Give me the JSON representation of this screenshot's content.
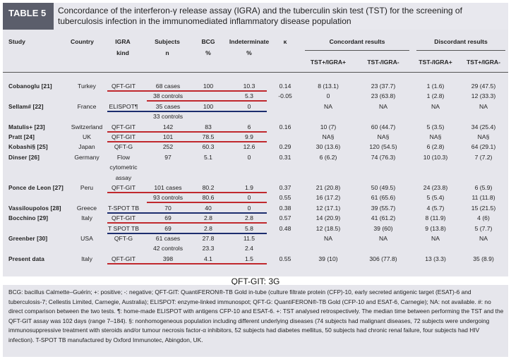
{
  "title": {
    "tag": "TABLE 5",
    "text": "Concordance of the interferon-γ release assay (IGRA) and the tuberculin skin test (TST) for the screening of tuberculosis infection in the immunomediated inflammatory disease population"
  },
  "headers": {
    "study": "Study",
    "country": "Country",
    "igra1": "IGRA",
    "igra2": "kind",
    "subjects1": "Subjects",
    "subjects2": "n",
    "bcg1": "BCG",
    "bcg2": "%",
    "indet1": "Indeterminate",
    "indet2": "%",
    "kappa": "κ",
    "concordant": "Concordant results",
    "discordant": "Discordant results",
    "tst_pos_igra_pos": "TST+/IGRA+",
    "tst_neg_igra_neg": "TST-/IGRA-",
    "tst_neg_igra_pos": "TST-/IGRA+",
    "tst_pos_igra_neg": "TST+/IGRA-"
  },
  "rows": [
    {
      "study": "Cobanoglu [21]",
      "country": "Turkey",
      "igra": "QFT-GIT",
      "subjects": "68 cases",
      "bcg": "100",
      "indet": "10.3",
      "kappa": "0.14",
      "c1": "8 (13.1)",
      "c2": "23 (37.7)",
      "d1": "1 (1.6)",
      "d2": "29 (47.5)"
    },
    {
      "study": "",
      "country": "",
      "igra": "",
      "subjects": "38 controls",
      "bcg": "",
      "indet": "5.3",
      "kappa": "-0.05",
      "c1": "0",
      "c2": "23 (63.8)",
      "d1": "1 (2.8)",
      "d2": "12 (33.3)"
    },
    {
      "study": "Sellam# [22]",
      "country": "France",
      "igra": "ELISPOT¶",
      "subjects": "35 cases",
      "bcg": "100",
      "indet": "0",
      "kappa": "",
      "c1": "NA",
      "c2": "NA",
      "d1": "NA",
      "d2": "NA"
    },
    {
      "study": "",
      "country": "",
      "igra": "",
      "subjects": "33 controls",
      "bcg": "",
      "indet": "",
      "kappa": "",
      "c1": "",
      "c2": "",
      "d1": "",
      "d2": ""
    },
    {
      "study": "Matulis+ [23]",
      "country": "Switzerland",
      "igra": "QFT-GIT",
      "subjects": "142",
      "bcg": "83",
      "indet": "6",
      "kappa": "0.16",
      "c1": "10 (7)",
      "c2": "60 (44.7)",
      "d1": "5 (3.5)",
      "d2": "34 (25.4)"
    },
    {
      "study": "Pratt [24]",
      "country": "UK",
      "igra": "QFT-GIT",
      "subjects": "101",
      "bcg": "78.5",
      "indet": "9.9",
      "kappa": "",
      "c1": "NA§",
      "c2": "NA§",
      "d1": "NA§",
      "d2": "NA§"
    },
    {
      "study": "Kobashi§ [25]",
      "country": "Japan",
      "igra": "QFT-G",
      "subjects": "252",
      "bcg": "60.3",
      "indet": "12.6",
      "kappa": "0.29",
      "c1": "30 (13.6)",
      "c2": "120 (54.5)",
      "d1": "6 (2.8)",
      "d2": "64 (29.1)"
    },
    {
      "study": "Dinser [26]",
      "country": "Germany",
      "igra": "Flow",
      "subjects": "97",
      "bcg": "5.1",
      "indet": "0",
      "kappa": "0.31",
      "c1": "6 (6.2)",
      "c2": "74 (76.3)",
      "d1": "10 (10.3)",
      "d2": "7 (7.2)"
    },
    {
      "study": "",
      "country": "",
      "igra": "cytometric",
      "subjects": "",
      "bcg": "",
      "indet": "",
      "kappa": "",
      "c1": "",
      "c2": "",
      "d1": "",
      "d2": ""
    },
    {
      "study": "",
      "country": "",
      "igra": "assay",
      "subjects": "",
      "bcg": "",
      "indet": "",
      "kappa": "",
      "c1": "",
      "c2": "",
      "d1": "",
      "d2": ""
    },
    {
      "study": "Ponce de Leon [27]",
      "country": "Peru",
      "igra": "QFT-GIT",
      "subjects": "101 cases",
      "bcg": "80.2",
      "indet": "1.9",
      "kappa": "0.37",
      "c1": "21 (20.8)",
      "c2": "50 (49.5)",
      "d1": "24 (23.8)",
      "d2": "6 (5.9)"
    },
    {
      "study": "",
      "country": "",
      "igra": "",
      "subjects": "93 controls",
      "bcg": "80.6",
      "indet": "0",
      "kappa": "0.55",
      "c1": "16 (17.2)",
      "c2": "61 (65.6)",
      "d1": "5 (5.4)",
      "d2": "11 (11.8)"
    },
    {
      "study": "Vassiloupolos [28]",
      "country": "Greece",
      "igra": "T-SPOT TB",
      "subjects": "70",
      "bcg": "40",
      "indet": "0",
      "kappa": "0.38",
      "c1": "12 (17.1)",
      "c2": "39 (55.7)",
      "d1": "4 (5.7)",
      "d2": "15 (21.5)"
    },
    {
      "study": "Bocchino [29]",
      "country": "Italy",
      "igra": "QFT-GIT",
      "subjects": "69",
      "bcg": "2.8",
      "indet": "2.8",
      "kappa": "0.57",
      "c1": "14 (20.9)",
      "c2": "41 (61.2)",
      "d1": "8 (11.9)",
      "d2": "4 (6)"
    },
    {
      "study": "",
      "country": "",
      "igra": "T SPOT TB",
      "subjects": "69",
      "bcg": "2.8",
      "indet": "5.8",
      "kappa": "0.48",
      "c1": "12 (18.5)",
      "c2": "39 (60)",
      "d1": "9 (13.8)",
      "d2": "5 (7.7)"
    },
    {
      "study": "Greenber [30]",
      "country": "USA",
      "igra": "QFT-G",
      "subjects": "61 cases",
      "bcg": "27.8",
      "indet": "11.5",
      "kappa": "",
      "c1": "NA",
      "c2": "NA",
      "d1": "NA",
      "d2": "NA"
    },
    {
      "study": "",
      "country": "",
      "igra": "",
      "subjects": "42 controls",
      "bcg": "23.3",
      "indet": "2.4",
      "kappa": "",
      "c1": "",
      "c2": "",
      "d1": "",
      "d2": ""
    },
    {
      "study": "Present data",
      "country": "Italy",
      "igra": "QFT-GIT",
      "subjects": "398",
      "bcg": "4.1",
      "indet": "1.5",
      "kappa": "0.55",
      "c1": "39 (10)",
      "c2": "306 (77.8)",
      "d1": "13 (3.3)",
      "d2": "35 (8.9)"
    }
  ],
  "banner": "QFT-GIT: 3G",
  "footnote": "BCG: bacillus Calmette–Guérin; +: positive; -: negative; QFT-GIT: QuantiFERON®-TB Gold in-tube (culture filtrate protein (CFP)-10, early secreted antigenic target (ESAT)-6 and tuberculosis-7; Cellestis Limited, Carnegie, Australia); ELISPOT: enzyme-linked immunospot; QFT-G: QuantiFERON®-TB Gold (CFP-10 and ESAT-6, Carnegie); NA: not available. #: no direct comparison between the two tests. ¶: home-made ELISPOT with antigens CFP-10 and ESAT-6. +: TST analysed retrospectively. The median time between performing the TST and the QFT-GIT assay was 102 days (range 7–184). §: nonhomogeneous population including different underlying diseases (74 subjects had malignant diseases, 72 subjects were undergoing immunosuppressive treatment with steroids and/or tumour necrosis factor-α inhibitors, 52 subjects had diabetes mellitus, 50 subjects had chronic renal failure, four subjects had HIV infection). T-SPOT TB manufactured by Oxford Immunotec, Abingdon, UK."
}
